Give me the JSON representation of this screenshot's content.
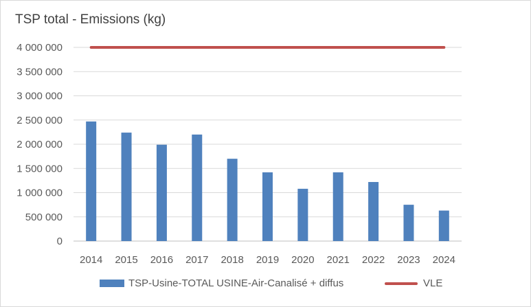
{
  "chart_data": {
    "type": "bar",
    "title": "TSP total - Emissions (kg)",
    "categories": [
      "2014",
      "2015",
      "2016",
      "2017",
      "2018",
      "2019",
      "2020",
      "2021",
      "2022",
      "2023",
      "2024"
    ],
    "series": [
      {
        "name": "TSP-Usine-TOTAL USINE-Air-Canalisé + diffus",
        "kind": "bar",
        "color": "#4f81bd",
        "values": [
          2470000,
          2240000,
          1990000,
          2200000,
          1700000,
          1420000,
          1080000,
          1420000,
          1220000,
          750000,
          630000
        ]
      },
      {
        "name": "VLE",
        "kind": "line",
        "color": "#c0504d",
        "values": [
          4000000,
          4000000,
          4000000,
          4000000,
          4000000,
          4000000,
          4000000,
          4000000,
          4000000,
          4000000,
          4000000
        ]
      }
    ],
    "ylim": [
      0,
      4000000
    ],
    "yticks": [
      0,
      500000,
      1000000,
      1500000,
      2000000,
      2500000,
      3000000,
      3500000,
      4000000
    ],
    "ytick_labels": [
      "0",
      "500 000",
      "1 000 000",
      "1 500 000",
      "2 000 000",
      "2 500 000",
      "3 000 000",
      "3 500 000",
      "4 000 000"
    ],
    "grid": true,
    "legend_position": "bottom"
  }
}
